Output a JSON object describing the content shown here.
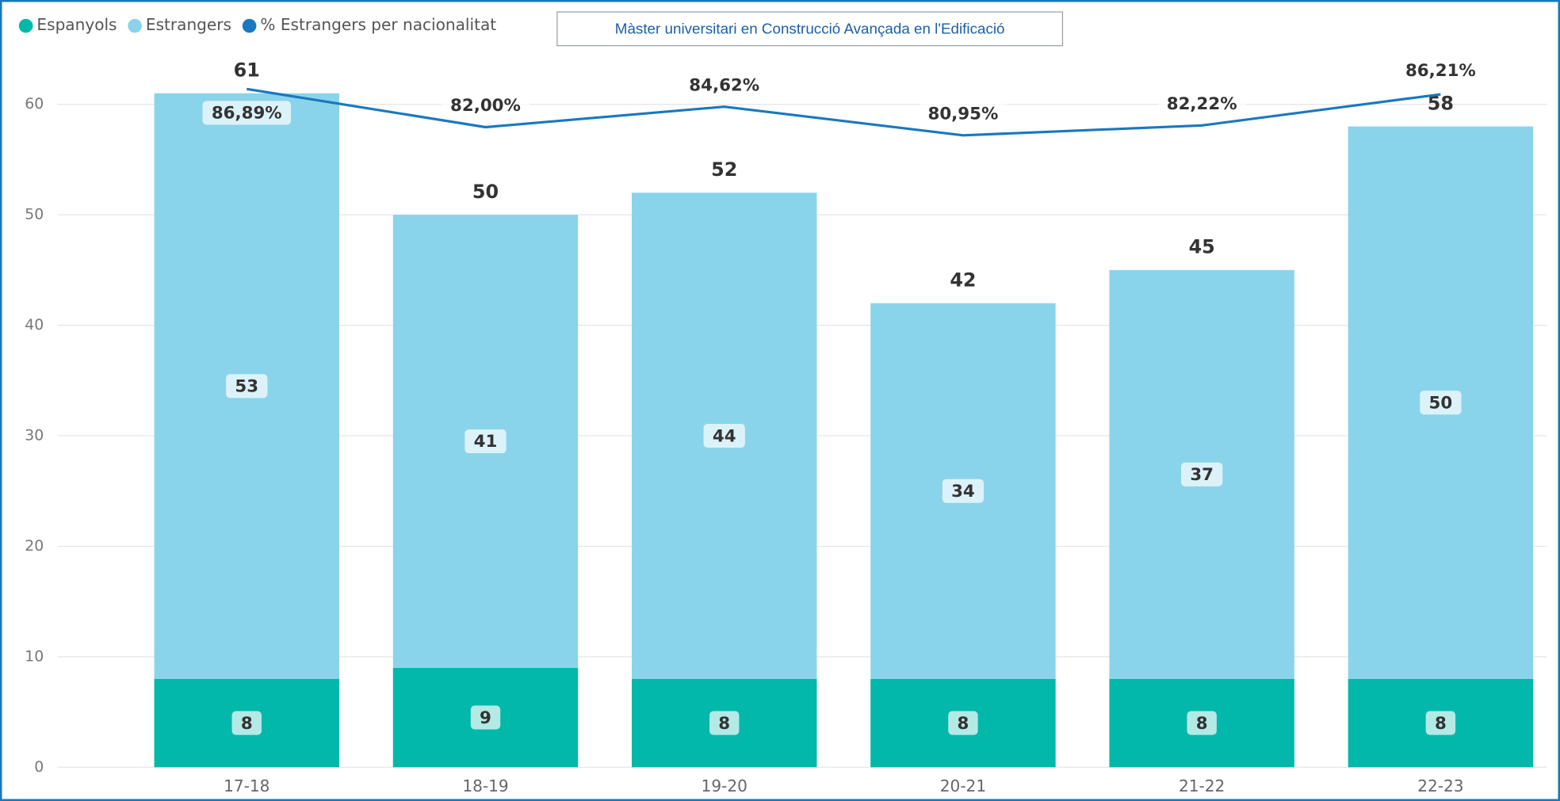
{
  "chart_data": {
    "type": "stacked_bar_line",
    "annotation": "Màster universitari en Construcció Avançada en l'Edificació",
    "categories": [
      "17-18",
      "18-19",
      "19-20",
      "20-21",
      "21-22",
      "22-23"
    ],
    "series": [
      {
        "name": "Espanyols",
        "color": "#01b8aa",
        "values": [
          8,
          9,
          8,
          8,
          8,
          8
        ]
      },
      {
        "name": "Estrangers",
        "color": "#8ad4eb",
        "values": [
          53,
          41,
          44,
          34,
          37,
          50
        ]
      },
      {
        "name": "% Estrangers per nacionalitat",
        "color": "#1a78be",
        "axis": "y2",
        "type": "line",
        "values": [
          86.89,
          82.0,
          84.62,
          80.95,
          82.22,
          86.21
        ],
        "value_labels": [
          "86,89%",
          "82,00%",
          "84,62%",
          "80,95%",
          "82,22%",
          "86,21%"
        ]
      }
    ],
    "totals": [
      61,
      50,
      52,
      42,
      45,
      58
    ],
    "ylim": [
      0,
      65
    ],
    "yticks": [
      0,
      10,
      20,
      30,
      40,
      50,
      60
    ],
    "y2lim": [
      0,
      92
    ],
    "grid": true,
    "legend": "top-left"
  }
}
